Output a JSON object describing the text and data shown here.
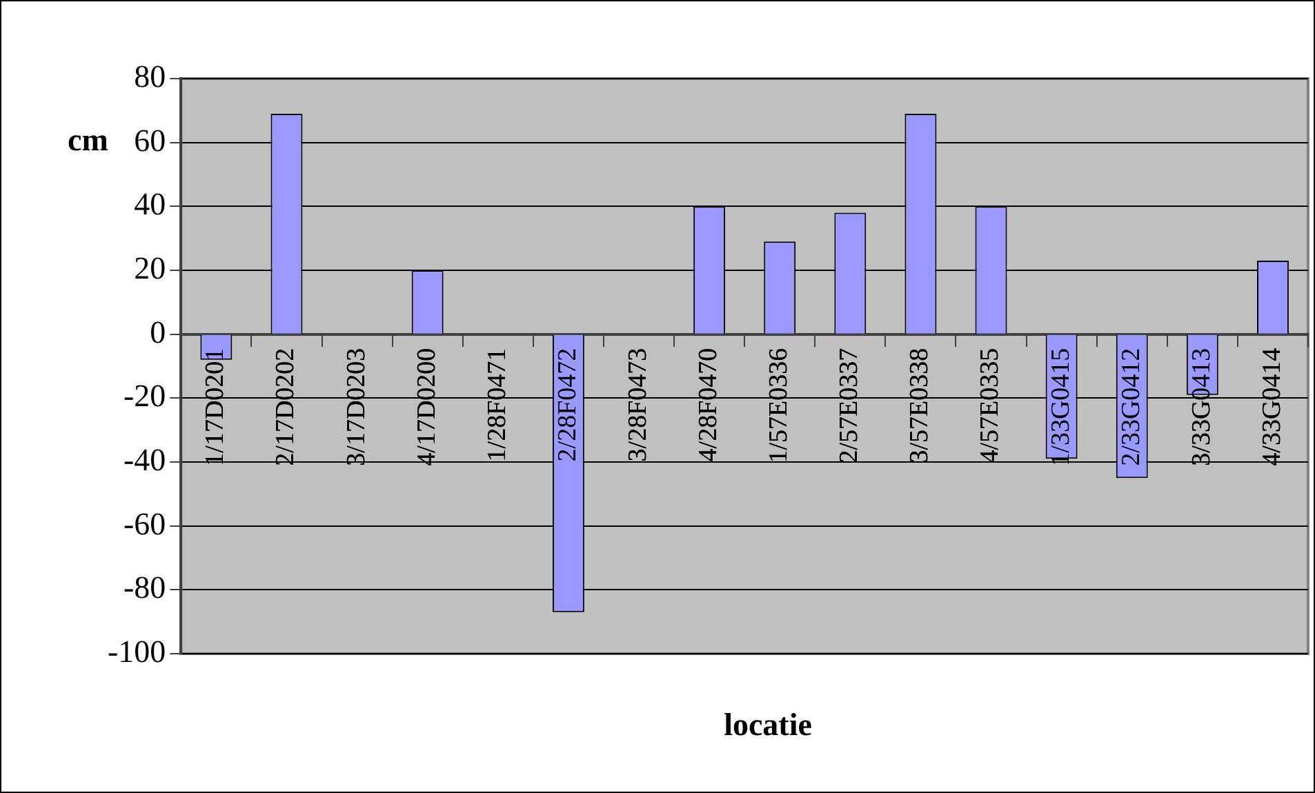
{
  "chart_data": {
    "type": "bar",
    "xlabel": "locatie",
    "ylabel": "cm",
    "categories": [
      "1/17D0201",
      "2/17D0202",
      "3/17D0203",
      "4/17D0200",
      "1/28F0471",
      "2/28F0472",
      "3/28F0473",
      "4/28F0470",
      "1/57E0336",
      "2/57E0337",
      "3/57E0338",
      "4/57E0335",
      "1/33G0415",
      "2/33G0412",
      "3/33G0413",
      "4/33G0414"
    ],
    "values": [
      -8,
      69,
      null,
      20,
      null,
      -87,
      null,
      40,
      29,
      38,
      69,
      40,
      -39,
      -45,
      -19,
      23
    ],
    "color": "#9999ff",
    "ylim": [
      -100,
      80
    ],
    "yticks": [
      -100,
      -80,
      -60,
      -40,
      -20,
      0,
      20,
      40,
      60,
      80
    ],
    "grid": "y",
    "legend": false
  }
}
